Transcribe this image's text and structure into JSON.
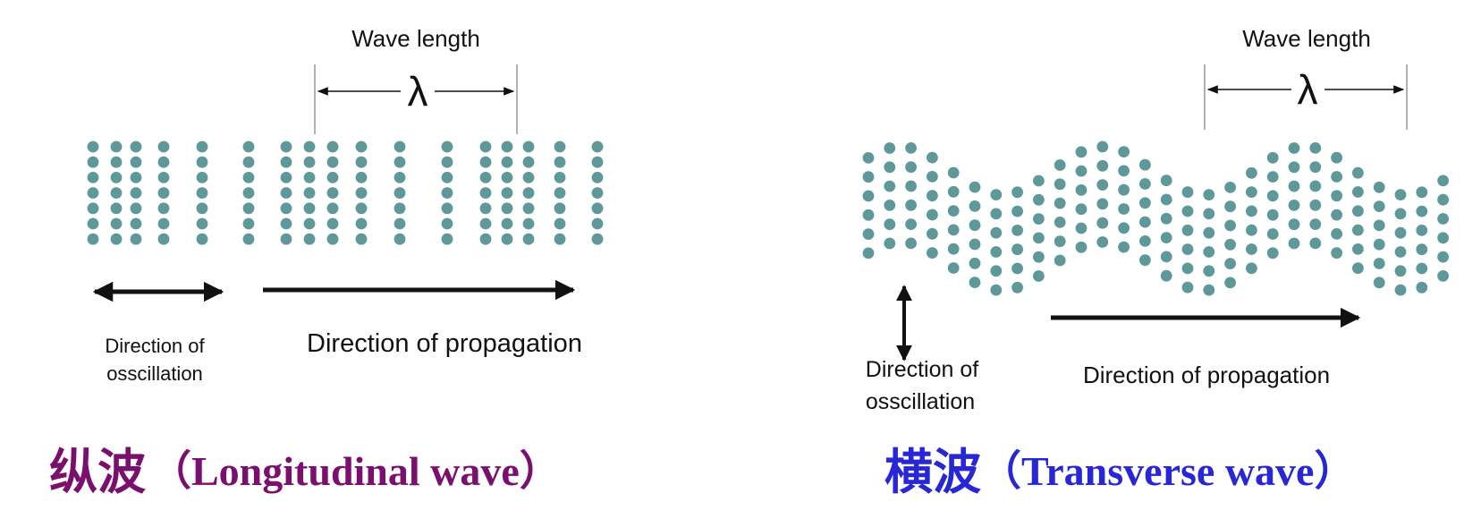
{
  "longitudinal": {
    "wavelength_label": "Wave length",
    "lambda_symbol": "λ",
    "oscillation_label_line1": "Direction of",
    "oscillation_label_line2": "osscillation",
    "propagation_label": "Direction of propagation",
    "title_cn": "纵波",
    "title_en": "（Longitudinal  wave）",
    "color_title": "#7a0f6e",
    "color_particle": "#5f9898"
  },
  "transverse": {
    "wavelength_label": "Wave length",
    "lambda_symbol": "λ",
    "oscillation_label_line1": "Direction of",
    "oscillation_label_line2": "osscillation",
    "propagation_label": "Direction of propagation",
    "title_cn": "横波",
    "title_en": "（Transverse wave）",
    "color_title": "#2727d6",
    "color_particle": "#5f9898"
  }
}
